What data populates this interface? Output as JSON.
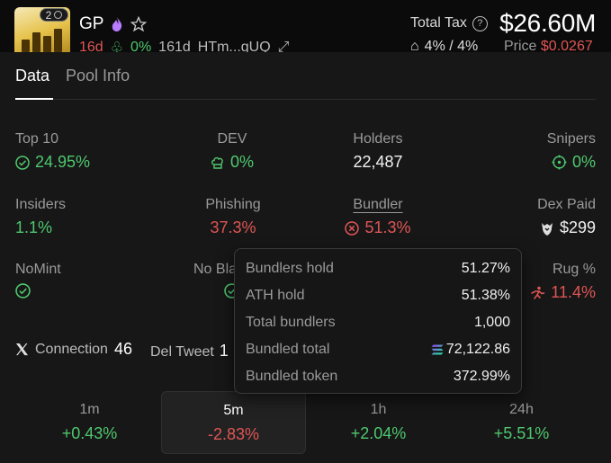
{
  "token": {
    "ticker": "GP",
    "holders_badge": "2",
    "sub_age": "16d",
    "sub_pct": "0%",
    "sub_age2": "161d",
    "sub_code": "HTm...gUQ",
    "total_tax_label": "Total Tax",
    "total_tax_value": "$26.60M",
    "tax_rates": "4% / 4%",
    "price_label": "Price",
    "price_value": "$0.0267"
  },
  "tabs": [
    {
      "label": "Data",
      "active": true
    },
    {
      "label": "Pool Info",
      "active": false
    }
  ],
  "stats": {
    "top10": {
      "label": "Top 10",
      "value": "24.95%"
    },
    "dev": {
      "label": "DEV",
      "value": "0%"
    },
    "holders": {
      "label": "Holders",
      "value": "22,487"
    },
    "snipers": {
      "label": "Snipers",
      "value": "0%"
    },
    "insiders": {
      "label": "Insiders",
      "value": "1.1%"
    },
    "phishing": {
      "label": "Phishing",
      "value": "37.3%"
    },
    "bundler": {
      "label": "Bundler",
      "value": "51.3%"
    },
    "dexpaid": {
      "label": "Dex Paid",
      "value": "$299"
    },
    "nomint": {
      "label": "NoMint"
    },
    "noblacklist": {
      "label": "No Bla"
    },
    "rug": {
      "label": "Rug %",
      "value": "11.4%"
    }
  },
  "social": {
    "connection_label": "Connection",
    "connection_value": "46",
    "deltweet_label": "Del Tweet",
    "deltweet_value": "1"
  },
  "timeframes": [
    {
      "label": "1m",
      "value": "+0.43%",
      "color": "#4ec86e",
      "selected": false
    },
    {
      "label": "5m",
      "value": "-2.83%",
      "color": "#e05555",
      "selected": true
    },
    {
      "label": "1h",
      "value": "+2.04%",
      "color": "#4ec86e",
      "selected": false
    },
    {
      "label": "24h",
      "value": "+5.51%",
      "color": "#4ec86e",
      "selected": false
    }
  ],
  "tooltip": {
    "rows": [
      {
        "key": "Bundlers hold",
        "value": "51.27%"
      },
      {
        "key": "ATH hold",
        "value": "51.38%"
      },
      {
        "key": "Total bundlers",
        "value": "1,000"
      },
      {
        "key": "Bundled total",
        "value": "72,122.86"
      },
      {
        "key": "Bundled token",
        "value": "372.99%"
      }
    ]
  },
  "colors": {
    "green": "#4ec86e",
    "red": "#e05555",
    "bg": "#171717"
  }
}
